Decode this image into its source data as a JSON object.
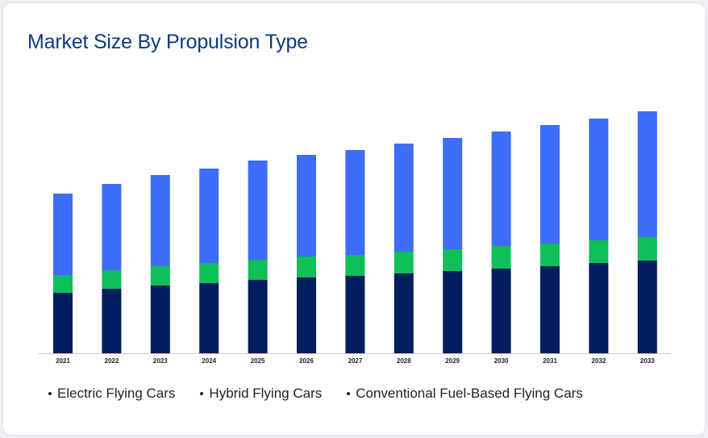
{
  "chart_data": {
    "type": "bar",
    "stacked": true,
    "title": "Market Size By Propulsion Type",
    "xlabel": "",
    "ylabel": "",
    "categories": [
      "2021",
      "2022",
      "2023",
      "2024",
      "2025",
      "2026",
      "2027",
      "2028",
      "2029",
      "2030",
      "2031",
      "2032",
      "2033"
    ],
    "series": [
      {
        "name": "Conventional Fuel-Based Flying Cars",
        "color": "#021e5f",
        "values": [
          75,
          80,
          84,
          87,
          91,
          94,
          96,
          99,
          102,
          105,
          108,
          112,
          115
        ]
      },
      {
        "name": "Hybrid Flying Cars",
        "color": "#0fbf57",
        "values": [
          22,
          23,
          24,
          25,
          25,
          26,
          26,
          27,
          27,
          28,
          28,
          28,
          29
        ]
      },
      {
        "name": "Electric Flying Cars",
        "color": "#3d6dfa",
        "values": [
          101,
          107,
          113,
          117,
          123,
          126,
          130,
          134,
          138,
          142,
          147,
          151,
          156
        ]
      }
    ],
    "ylim": [
      0,
      300
    ],
    "grid": false,
    "legend_position": "bottom",
    "legend_order": [
      "Electric Flying Cars",
      "Hybrid Flying Cars",
      "Conventional Fuel-Based Flying Cars"
    ]
  }
}
